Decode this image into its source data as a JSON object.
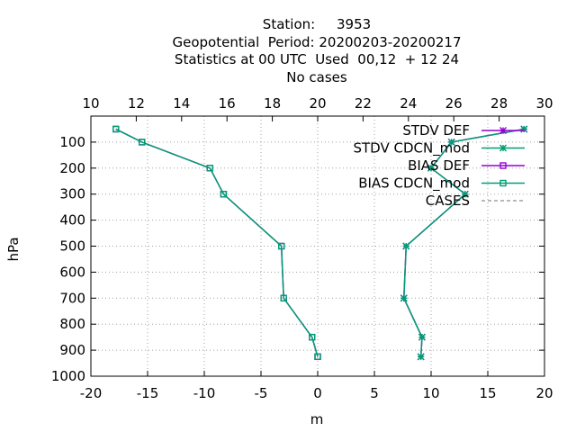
{
  "chart_data": {
    "type": "line",
    "title_lines": [
      "Station:     3953",
      "Geopotential  Period: 20200203-20200217",
      "Statistics at 00 UTC  Used  00,12  + 12 24",
      "No cases"
    ],
    "xlabel": "m",
    "ylabel": "hPa",
    "xlim": [
      -20,
      20
    ],
    "x_ticks": [
      -20,
      -15,
      -10,
      -5,
      0,
      5,
      10,
      15,
      20
    ],
    "x2lim": [
      10,
      30
    ],
    "x2_ticks": [
      10,
      12,
      14,
      16,
      18,
      20,
      22,
      24,
      26,
      28,
      30
    ],
    "ylim": [
      1000,
      0
    ],
    "y_ticks": [
      100,
      200,
      300,
      400,
      500,
      600,
      700,
      800,
      900,
      1000
    ],
    "grid": true,
    "legend_position": "top-right",
    "series": [
      {
        "name": "STDV DEF",
        "color": "#9400d3",
        "marker": "star",
        "points": [
          [
            18.2,
            50
          ],
          [
            11.8,
            100
          ],
          [
            10.0,
            200
          ],
          [
            13.0,
            300
          ],
          [
            7.8,
            500
          ],
          [
            7.6,
            700
          ],
          [
            9.2,
            850
          ],
          [
            9.1,
            925
          ]
        ]
      },
      {
        "name": "STDV CDCN_mod",
        "color": "#009e73",
        "marker": "star",
        "points": [
          [
            18.2,
            50
          ],
          [
            11.8,
            100
          ],
          [
            10.0,
            200
          ],
          [
            13.0,
            300
          ],
          [
            7.8,
            500
          ],
          [
            7.6,
            700
          ],
          [
            9.2,
            850
          ],
          [
            9.1,
            925
          ]
        ]
      },
      {
        "name": "BIAS DEF",
        "color": "#9400d3",
        "marker": "square",
        "points": [
          [
            -17.8,
            50
          ],
          [
            -15.5,
            100
          ],
          [
            -9.5,
            200
          ],
          [
            -8.3,
            300
          ],
          [
            -3.2,
            500
          ],
          [
            -3.0,
            700
          ],
          [
            -0.5,
            850
          ],
          [
            0.0,
            925
          ]
        ]
      },
      {
        "name": "BIAS CDCN_mod",
        "color": "#009e73",
        "marker": "square",
        "points": [
          [
            -17.8,
            50
          ],
          [
            -15.5,
            100
          ],
          [
            -9.5,
            200
          ],
          [
            -8.3,
            300
          ],
          [
            -3.2,
            500
          ],
          [
            -3.0,
            700
          ],
          [
            -0.5,
            850
          ],
          [
            0.0,
            925
          ]
        ]
      },
      {
        "name": "CASES",
        "color": "#a0a0a0",
        "marker": "none",
        "dashed": true,
        "axis": "x2",
        "points": []
      }
    ]
  }
}
